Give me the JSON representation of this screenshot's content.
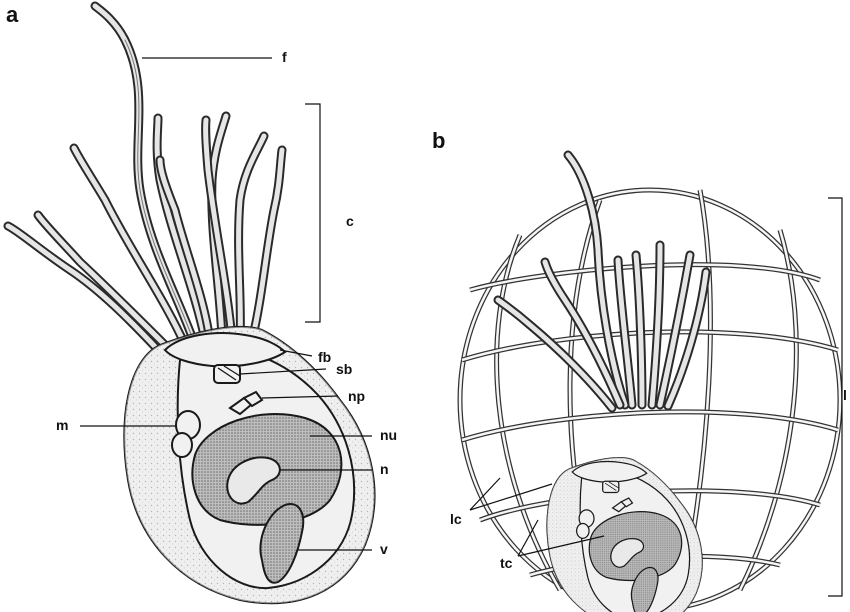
{
  "panels": {
    "a": "a",
    "b": "b"
  },
  "labels_a": {
    "f": "f",
    "c": "c",
    "fb": "fb",
    "sb": "sb",
    "np": "np",
    "m": "m",
    "nu": "nu",
    "n": "n",
    "v": "v"
  },
  "labels_b": {
    "l": "l",
    "lc": "lc",
    "tc": "tc"
  }
}
